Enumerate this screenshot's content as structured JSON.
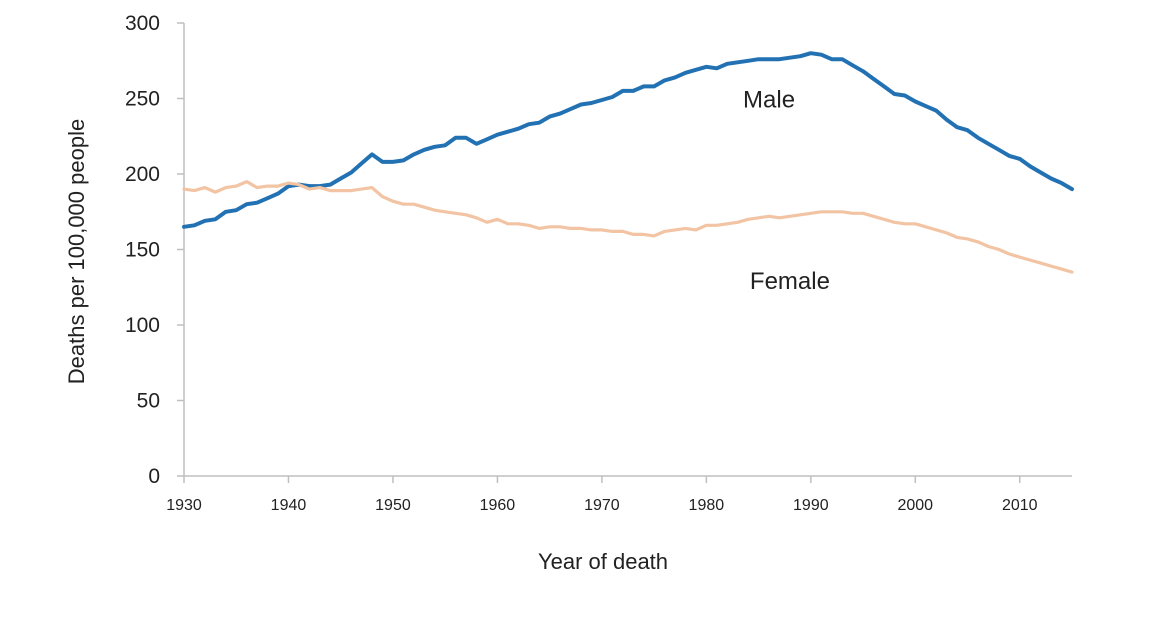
{
  "chart_data": {
    "type": "line",
    "title": "",
    "xlabel": "Year of death",
    "ylabel": "Deaths per 100,000 people",
    "xlim": [
      1930,
      2015
    ],
    "ylim": [
      0,
      300
    ],
    "x_ticks": [
      1930,
      1940,
      1950,
      1960,
      1970,
      1980,
      1990,
      2000,
      2010
    ],
    "y_ticks": [
      0,
      50,
      100,
      150,
      200,
      250,
      300
    ],
    "x_tick_labels": [
      "1930",
      "1940",
      "1950",
      "1960",
      "1970",
      "1980",
      "1990",
      "2000",
      "2010"
    ],
    "y_tick_labels": [
      "0",
      "50",
      "100",
      "150",
      "200",
      "250",
      "300"
    ],
    "grid": false,
    "legend": "none",
    "series": [
      {
        "name": "Male",
        "label": "Male",
        "color": "#2271b3",
        "label_anchor": [
          1986,
          244
        ],
        "points": [
          [
            1930,
            165
          ],
          [
            1931,
            166
          ],
          [
            1932,
            169
          ],
          [
            1933,
            170
          ],
          [
            1934,
            175
          ],
          [
            1935,
            176
          ],
          [
            1936,
            180
          ],
          [
            1937,
            181
          ],
          [
            1938,
            184
          ],
          [
            1939,
            187
          ],
          [
            1940,
            192
          ],
          [
            1941,
            193
          ],
          [
            1942,
            192
          ],
          [
            1943,
            192
          ],
          [
            1944,
            193
          ],
          [
            1945,
            197
          ],
          [
            1946,
            201
          ],
          [
            1947,
            207
          ],
          [
            1948,
            213
          ],
          [
            1949,
            208
          ],
          [
            1950,
            208
          ],
          [
            1951,
            209
          ],
          [
            1952,
            213
          ],
          [
            1953,
            216
          ],
          [
            1954,
            218
          ],
          [
            1955,
            219
          ],
          [
            1956,
            224
          ],
          [
            1957,
            224
          ],
          [
            1958,
            220
          ],
          [
            1959,
            223
          ],
          [
            1960,
            226
          ],
          [
            1961,
            228
          ],
          [
            1962,
            230
          ],
          [
            1963,
            233
          ],
          [
            1964,
            234
          ],
          [
            1965,
            238
          ],
          [
            1966,
            240
          ],
          [
            1967,
            243
          ],
          [
            1968,
            246
          ],
          [
            1969,
            247
          ],
          [
            1970,
            249
          ],
          [
            1971,
            251
          ],
          [
            1972,
            255
          ],
          [
            1973,
            255
          ],
          [
            1974,
            258
          ],
          [
            1975,
            258
          ],
          [
            1976,
            262
          ],
          [
            1977,
            264
          ],
          [
            1978,
            267
          ],
          [
            1979,
            269
          ],
          [
            1980,
            271
          ],
          [
            1981,
            270
          ],
          [
            1982,
            273
          ],
          [
            1983,
            274
          ],
          [
            1984,
            275
          ],
          [
            1985,
            276
          ],
          [
            1986,
            276
          ],
          [
            1987,
            276
          ],
          [
            1988,
            277
          ],
          [
            1989,
            278
          ],
          [
            1990,
            280
          ],
          [
            1991,
            279
          ],
          [
            1992,
            276
          ],
          [
            1993,
            276
          ],
          [
            1994,
            272
          ],
          [
            1995,
            268
          ],
          [
            1996,
            263
          ],
          [
            1997,
            258
          ],
          [
            1998,
            253
          ],
          [
            1999,
            252
          ],
          [
            2000,
            248
          ],
          [
            2001,
            245
          ],
          [
            2002,
            242
          ],
          [
            2003,
            236
          ],
          [
            2004,
            231
          ],
          [
            2005,
            229
          ],
          [
            2006,
            224
          ],
          [
            2007,
            220
          ],
          [
            2008,
            216
          ],
          [
            2009,
            212
          ],
          [
            2010,
            210
          ],
          [
            2011,
            205
          ],
          [
            2012,
            201
          ],
          [
            2013,
            197
          ],
          [
            2014,
            194
          ],
          [
            2015,
            190
          ]
        ]
      },
      {
        "name": "Female",
        "label": "Female",
        "color": "#f2c4a3",
        "label_anchor": [
          1988,
          124
        ],
        "points": [
          [
            1930,
            190
          ],
          [
            1931,
            189
          ],
          [
            1932,
            191
          ],
          [
            1933,
            188
          ],
          [
            1934,
            191
          ],
          [
            1935,
            192
          ],
          [
            1936,
            195
          ],
          [
            1937,
            191
          ],
          [
            1938,
            192
          ],
          [
            1939,
            192
          ],
          [
            1940,
            194
          ],
          [
            1941,
            193
          ],
          [
            1942,
            190
          ],
          [
            1943,
            191
          ],
          [
            1944,
            189
          ],
          [
            1945,
            189
          ],
          [
            1946,
            189
          ],
          [
            1947,
            190
          ],
          [
            1948,
            191
          ],
          [
            1949,
            185
          ],
          [
            1950,
            182
          ],
          [
            1951,
            180
          ],
          [
            1952,
            180
          ],
          [
            1953,
            178
          ],
          [
            1954,
            176
          ],
          [
            1955,
            175
          ],
          [
            1956,
            174
          ],
          [
            1957,
            173
          ],
          [
            1958,
            171
          ],
          [
            1959,
            168
          ],
          [
            1960,
            170
          ],
          [
            1961,
            167
          ],
          [
            1962,
            167
          ],
          [
            1963,
            166
          ],
          [
            1964,
            164
          ],
          [
            1965,
            165
          ],
          [
            1966,
            165
          ],
          [
            1967,
            164
          ],
          [
            1968,
            164
          ],
          [
            1969,
            163
          ],
          [
            1970,
            163
          ],
          [
            1971,
            162
          ],
          [
            1972,
            162
          ],
          [
            1973,
            160
          ],
          [
            1974,
            160
          ],
          [
            1975,
            159
          ],
          [
            1976,
            162
          ],
          [
            1977,
            163
          ],
          [
            1978,
            164
          ],
          [
            1979,
            163
          ],
          [
            1980,
            166
          ],
          [
            1981,
            166
          ],
          [
            1982,
            167
          ],
          [
            1983,
            168
          ],
          [
            1984,
            170
          ],
          [
            1985,
            171
          ],
          [
            1986,
            172
          ],
          [
            1987,
            171
          ],
          [
            1988,
            172
          ],
          [
            1989,
            173
          ],
          [
            1990,
            174
          ],
          [
            1991,
            175
          ],
          [
            1992,
            175
          ],
          [
            1993,
            175
          ],
          [
            1994,
            174
          ],
          [
            1995,
            174
          ],
          [
            1996,
            172
          ],
          [
            1997,
            170
          ],
          [
            1998,
            168
          ],
          [
            1999,
            167
          ],
          [
            2000,
            167
          ],
          [
            2001,
            165
          ],
          [
            2002,
            163
          ],
          [
            2003,
            161
          ],
          [
            2004,
            158
          ],
          [
            2005,
            157
          ],
          [
            2006,
            155
          ],
          [
            2007,
            152
          ],
          [
            2008,
            150
          ],
          [
            2009,
            147
          ],
          [
            2010,
            145
          ],
          [
            2011,
            143
          ],
          [
            2012,
            141
          ],
          [
            2013,
            139
          ],
          [
            2014,
            137
          ],
          [
            2015,
            135
          ]
        ]
      }
    ]
  }
}
